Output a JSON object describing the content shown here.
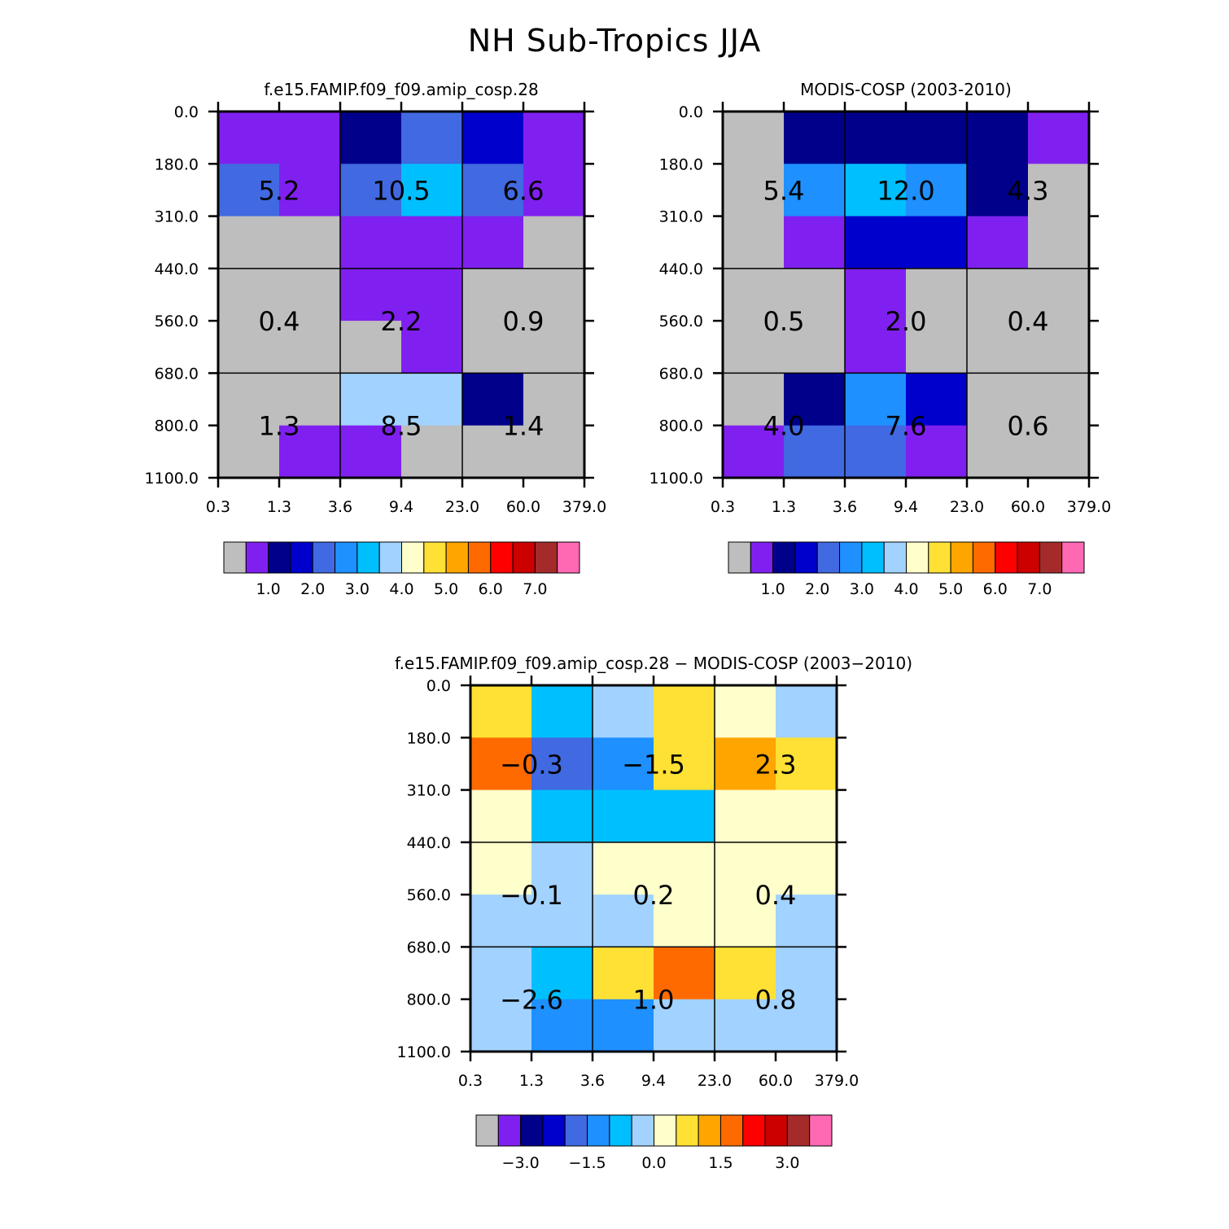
{
  "title": "NH Sub-Tropics JJA",
  "colors": {
    "grey": "#bebebe",
    "palette": [
      "#bebebe",
      "#8020f0",
      "#00008b",
      "#0000cd",
      "#4169e1",
      "#1e90ff",
      "#00bfff",
      "#a2d2ff",
      "#ffffcc",
      "#ffe135",
      "#ffa500",
      "#ff6a00",
      "#ff0000",
      "#cd0000",
      "#a52a2a",
      "#ff69b4"
    ]
  },
  "chart_data": [
    {
      "type": "heatmap",
      "id": "model",
      "title": "f.e15.FAMIP.f09_f09.amip_cosp.28",
      "xticks": [
        "0.3",
        "1.3",
        "3.6",
        "9.4",
        "23.0",
        "60.0",
        "379.0"
      ],
      "yticks": [
        "0.0",
        "180.0",
        "310.0",
        "440.0",
        "560.0",
        "680.0",
        "800.0",
        "1100.0"
      ],
      "cells": [
        [
          1,
          1,
          2,
          4,
          3,
          1
        ],
        [
          4,
          1,
          4,
          6,
          4,
          1
        ],
        [
          0,
          0,
          1,
          1,
          1,
          0
        ],
        [
          0,
          0,
          1,
          1,
          0,
          0
        ],
        [
          0,
          0,
          0,
          1,
          0,
          0
        ],
        [
          0,
          0,
          7,
          7,
          2,
          0
        ],
        [
          0,
          1,
          1,
          0,
          0,
          0
        ]
      ],
      "group_labels": [
        [
          "5.2",
          "10.5",
          "6.6"
        ],
        [
          "0.4",
          "2.2",
          "0.9"
        ],
        [
          "1.3",
          "8.5",
          "1.4"
        ]
      ],
      "colorbar": {
        "labels": [
          "1.0",
          "2.0",
          "3.0",
          "4.0",
          "5.0",
          "6.0",
          "7.0"
        ]
      }
    },
    {
      "type": "heatmap",
      "id": "obs",
      "title": "MODIS-COSP (2003-2010)",
      "xticks": [
        "0.3",
        "1.3",
        "3.6",
        "9.4",
        "23.0",
        "60.0",
        "379.0"
      ],
      "yticks": [
        "0.0",
        "180.0",
        "310.0",
        "440.0",
        "560.0",
        "680.0",
        "800.0",
        "1100.0"
      ],
      "cells": [
        [
          0,
          2,
          2,
          2,
          2,
          1
        ],
        [
          0,
          5,
          6,
          5,
          2,
          0
        ],
        [
          0,
          1,
          3,
          3,
          1,
          0
        ],
        [
          0,
          0,
          1,
          0,
          0,
          0
        ],
        [
          0,
          0,
          1,
          0,
          0,
          0
        ],
        [
          0,
          2,
          5,
          3,
          0,
          0
        ],
        [
          1,
          4,
          4,
          1,
          0,
          0
        ]
      ],
      "group_labels": [
        [
          "5.4",
          "12.0",
          "4.3"
        ],
        [
          "0.5",
          "2.0",
          "0.4"
        ],
        [
          "4.0",
          "7.6",
          "0.6"
        ]
      ],
      "colorbar": {
        "labels": [
          "1.0",
          "2.0",
          "3.0",
          "4.0",
          "5.0",
          "6.0",
          "7.0"
        ]
      }
    },
    {
      "type": "heatmap",
      "id": "diff",
      "title": "f.e15.FAMIP.f09_f09.amip_cosp.28 − MODIS-COSP (2003−2010)",
      "xticks": [
        "0.3",
        "1.3",
        "3.6",
        "9.4",
        "23.0",
        "60.0",
        "379.0"
      ],
      "yticks": [
        "0.0",
        "180.0",
        "310.0",
        "440.0",
        "560.0",
        "680.0",
        "800.0",
        "1100.0"
      ],
      "cells": [
        [
          9,
          6,
          7,
          9,
          8,
          7
        ],
        [
          11,
          4,
          5,
          9,
          10,
          9
        ],
        [
          8,
          6,
          6,
          6,
          8,
          8
        ],
        [
          8,
          7,
          8,
          8,
          8,
          8
        ],
        [
          7,
          7,
          7,
          8,
          8,
          7
        ],
        [
          7,
          6,
          9,
          11,
          9,
          7
        ],
        [
          7,
          5,
          5,
          7,
          7,
          7
        ]
      ],
      "group_labels": [
        [
          "−0.3",
          "−1.5",
          "2.3"
        ],
        [
          "−0.1",
          "0.2",
          "0.4"
        ],
        [
          "−2.6",
          "1.0",
          "0.8"
        ]
      ],
      "colorbar": {
        "labels": [
          "−3.0",
          "−1.5",
          "0.0",
          "1.5",
          "3.0"
        ]
      }
    }
  ]
}
